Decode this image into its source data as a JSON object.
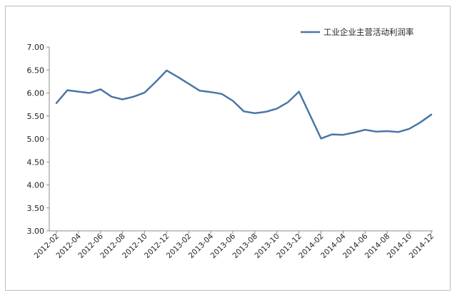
{
  "chart_data": {
    "type": "line",
    "title": "",
    "xlabel": "",
    "ylabel": "",
    "ylim": [
      3.0,
      7.0
    ],
    "yticks": [
      "3.00",
      "3.50",
      "4.00",
      "4.50",
      "5.00",
      "5.50",
      "6.00",
      "6.50",
      "7.00"
    ],
    "grid": false,
    "legend_position": "top-right",
    "series_color": "#4a76a8",
    "x": [
      "2012-02",
      "2012-03",
      "2012-04",
      "2012-05",
      "2012-06",
      "2012-07",
      "2012-08",
      "2012-09",
      "2012-10",
      "2012-11",
      "2012-12",
      "2013-01",
      "2013-02",
      "2013-03",
      "2013-04",
      "2013-05",
      "2013-06",
      "2013-07",
      "2013-08",
      "2013-09",
      "2013-10",
      "2013-11",
      "2013-12",
      "2014-01",
      "2014-02",
      "2014-03",
      "2014-04",
      "2014-05",
      "2014-06",
      "2014-07",
      "2014-08",
      "2014-09",
      "2014-10",
      "2014-11",
      "2014-12"
    ],
    "xtick_labels": [
      "2012-02",
      "2012-04",
      "2012-06",
      "2012-08",
      "2012-10",
      "2012-12",
      "2013-02",
      "2013-04",
      "2013-06",
      "2013-08",
      "2013-10",
      "2013-12",
      "2014-02",
      "2014-04",
      "2014-06",
      "2014-08",
      "2014-10",
      "2014-12"
    ],
    "series": [
      {
        "name": "工业企业主营活动利润率",
        "values": [
          5.78,
          6.06,
          6.03,
          6.0,
          6.08,
          5.92,
          5.86,
          5.92,
          6.01,
          6.24,
          6.49,
          6.35,
          6.2,
          6.05,
          6.02,
          5.98,
          5.83,
          5.6,
          5.56,
          5.59,
          5.66,
          5.8,
          6.03,
          null,
          5.01,
          5.1,
          5.09,
          5.14,
          5.2,
          5.16,
          5.17,
          5.15,
          5.22,
          5.36,
          5.53
        ]
      }
    ]
  }
}
